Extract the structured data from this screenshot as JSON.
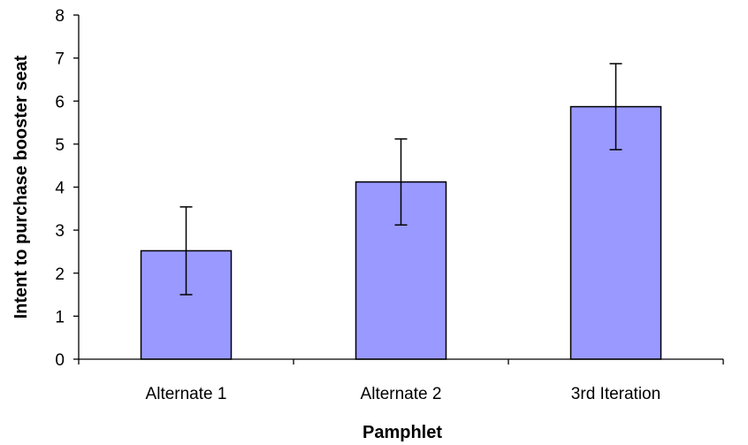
{
  "chart_data": {
    "type": "bar",
    "categories": [
      "Alternate 1",
      "Alternate 2",
      "3rd Iteration"
    ],
    "values": [
      2.52,
      4.12,
      5.87
    ],
    "error": [
      1.02,
      1.0,
      1.0
    ],
    "xlabel": "Pamphlet",
    "ylabel": "Intent to purchase booster seat",
    "ylim": [
      0,
      8
    ],
    "yticks": [
      "0",
      "1",
      "2",
      "3",
      "4",
      "5",
      "6",
      "7",
      "8"
    ],
    "grid": false,
    "legend": "none",
    "colors": {
      "bar_fill": "#9999ff",
      "bar_stroke": "#000000",
      "axis": "#000000",
      "error_bar": "#000000"
    }
  }
}
